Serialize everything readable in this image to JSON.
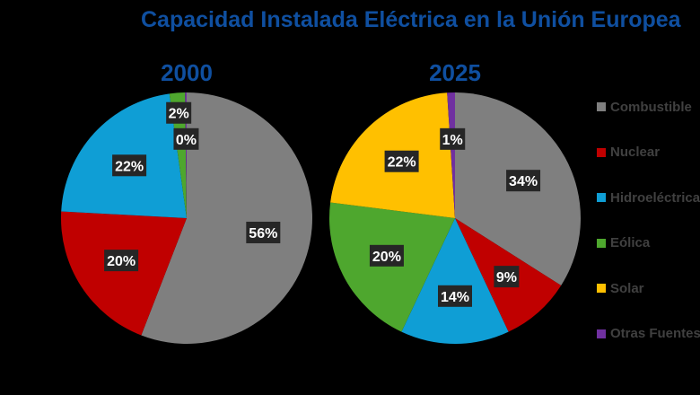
{
  "chart_data": [
    {
      "type": "pie",
      "title": "2000",
      "categories": [
        "Combustible",
        "Nuclear",
        "Hidroeléctrica",
        "Eólica",
        "Solar",
        "Otras Fuentes"
      ],
      "values": [
        56,
        20,
        22,
        2,
        0,
        0.2
      ],
      "labels": [
        "56%",
        "20%",
        "22%",
        "2%",
        "",
        "0%"
      ]
    },
    {
      "type": "pie",
      "title": "2025",
      "categories": [
        "Combustible",
        "Nuclear",
        "Hidroeléctrica",
        "Eólica",
        "Solar",
        "Otras Fuentes"
      ],
      "values": [
        34,
        9,
        14,
        20,
        22,
        1
      ],
      "labels": [
        "34%",
        "9%",
        "14%",
        "20%",
        "22%",
        "1%"
      ]
    }
  ],
  "title": "Capacidad Instalada Eléctrica en la Unión Europea",
  "legend": {
    "placement": "right",
    "items": [
      "Combustible",
      "Nuclear",
      "Hidroeléctrica",
      "Eólica",
      "Solar",
      "Otras Fuentes"
    ]
  },
  "colors": [
    "#7f7f7f",
    "#c00000",
    "#0f9ed5",
    "#4ea72e",
    "#ffc000",
    "#7030a0"
  ]
}
